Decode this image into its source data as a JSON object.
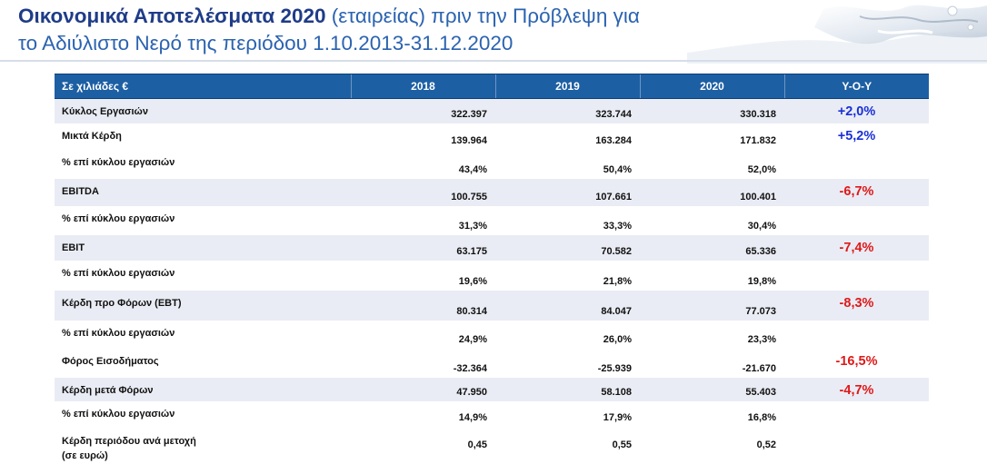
{
  "title": {
    "bold": "Οικονομικά Αποτελέσματα 2020",
    "rest1": " (εταιρείας) πριν την Πρόβλεψη για",
    "line2": "το Αδιύλιστο Νερό της περιόδου 1.10.2013-31.12.2020"
  },
  "table": {
    "headers": [
      "Σε χιλιάδες €",
      "2018",
      "2019",
      "2020",
      "Y-O-Y"
    ],
    "rows": [
      {
        "label": "Κύκλος Εργασιών",
        "v2018": "322.397",
        "v2019": "323.744",
        "v2020": "330.318",
        "yoy": "+2,0%"
      },
      {
        "label": "Μικτά Κέρδη",
        "v2018": "139.964",
        "v2019": "163.284",
        "v2020": "171.832",
        "yoy": "+5,2%"
      },
      {
        "label": "% επί κύκλου εργασιών",
        "v2018": "43,4%",
        "v2019": "50,4%",
        "v2020": "52,0%",
        "yoy": ""
      },
      {
        "label": "EBITDA",
        "v2018": "100.755",
        "v2019": "107.661",
        "v2020": "100.401",
        "yoy": "-6,7%"
      },
      {
        "label": "% επί κύκλου εργασιών",
        "v2018": "31,3%",
        "v2019": "33,3%",
        "v2020": "30,4%",
        "yoy": ""
      },
      {
        "label": "EBIT",
        "v2018": "63.175",
        "v2019": "70.582",
        "v2020": "65.336",
        "yoy": "-7,4%"
      },
      {
        "label": "% επί κύκλου εργασιών",
        "v2018": "19,6%",
        "v2019": "21,8%",
        "v2020": "19,8%",
        "yoy": ""
      },
      {
        "label": "Κέρδη προ Φόρων (EBT)",
        "v2018": "80.314",
        "v2019": "84.047",
        "v2020": "77.073",
        "yoy": "-8,3%"
      },
      {
        "label": "% επί κύκλου εργασιών",
        "v2018": "24,9%",
        "v2019": "26,0%",
        "v2020": "23,3%",
        "yoy": ""
      },
      {
        "label": "Φόρος Εισοδήματος",
        "v2018": "-32.364",
        "v2019": "-25.939",
        "v2020": "-21.670",
        "yoy": "-16,5%"
      },
      {
        "label": "Κέρδη μετά Φόρων",
        "v2018": "47.950",
        "v2019": "58.108",
        "v2020": "55.403",
        "yoy": "-4,7%"
      },
      {
        "label": "% επί κύκλου εργασιών",
        "v2018": "14,9%",
        "v2019": "17,9%",
        "v2020": "16,8%",
        "yoy": ""
      },
      {
        "label1": "Κέρδη περιόδου ανά μετοχή",
        "label2": "(σε ευρώ)",
        "v2018": "0,45",
        "v2019": "0,55",
        "v2020": "0,52",
        "yoy": ""
      }
    ]
  },
  "colors": {
    "header_bg": "#1d5fa3",
    "positive": "#1a2fd6",
    "negative": "#e01818",
    "shade": "#e9ecf4"
  }
}
